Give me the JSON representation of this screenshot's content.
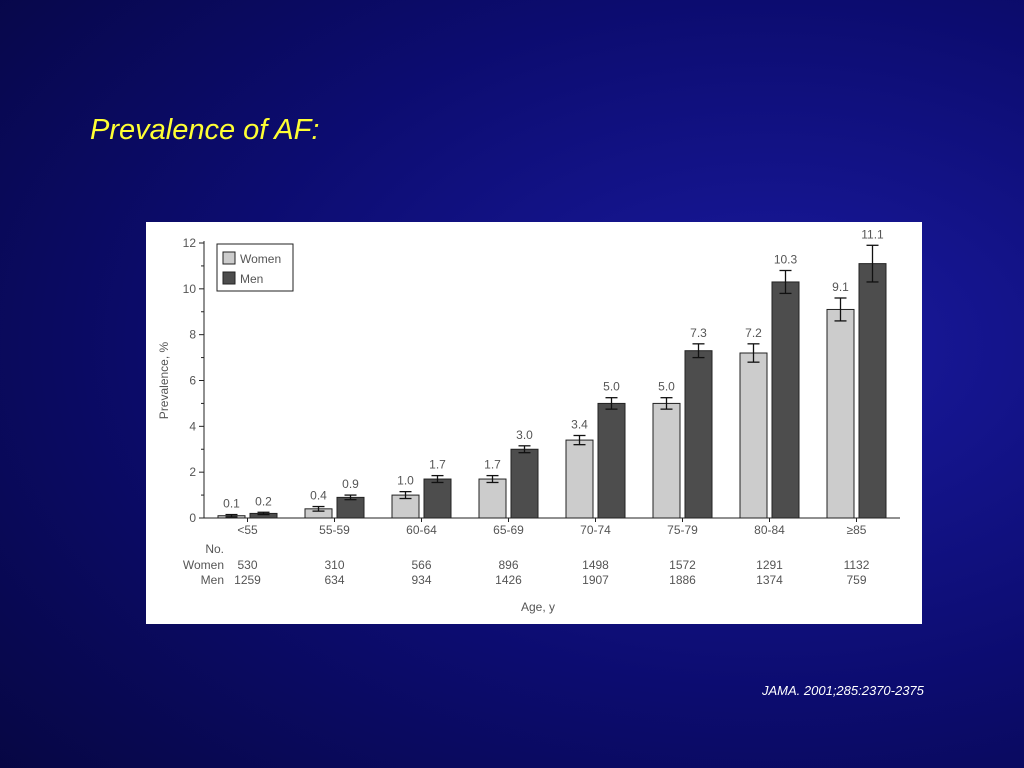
{
  "slide": {
    "title": "Prevalence of AF:",
    "citation": "JAMA. 2001;285:2370-2375"
  },
  "colors": {
    "background": "#0c0c70",
    "title": "#ffff33",
    "women_bar": "#cccccc",
    "men_bar": "#4d4d4d"
  },
  "chart_data": {
    "type": "bar",
    "categories": [
      "<55",
      "55-59",
      "60-64",
      "65-69",
      "70-74",
      "75-79",
      "80-84",
      "≥85"
    ],
    "series": [
      {
        "name": "Women",
        "color": "#cccccc",
        "values": [
          0.1,
          0.4,
          1.0,
          1.7,
          3.4,
          5.0,
          7.2,
          9.1
        ],
        "labels": [
          "0.1",
          "0.4",
          "1.0",
          "1.7",
          "3.4",
          "5.0",
          "7.2",
          "9.1"
        ],
        "error": [
          0.05,
          0.1,
          0.15,
          0.15,
          0.2,
          0.25,
          0.4,
          0.5
        ]
      },
      {
        "name": "Men",
        "color": "#4d4d4d",
        "values": [
          0.2,
          0.9,
          1.7,
          3.0,
          5.0,
          7.3,
          10.3,
          11.1
        ],
        "labels": [
          "0.2",
          "0.9",
          "1.7",
          "3.0",
          "5.0",
          "7.3",
          "10.3",
          "11.1"
        ],
        "error": [
          0.05,
          0.1,
          0.15,
          0.15,
          0.25,
          0.3,
          0.5,
          0.8
        ]
      }
    ],
    "ylabel": "Prevalence, %",
    "xlabel": "Age, y",
    "ylim": [
      0,
      12
    ],
    "yticks": [
      "0",
      "2",
      "4",
      "6",
      "8",
      "10",
      "12"
    ],
    "legend_position": "top-left",
    "counts_header": "No.",
    "counts": [
      {
        "label": "Women",
        "values": [
          "530",
          "310",
          "566",
          "896",
          "1498",
          "1572",
          "1291",
          "1132"
        ]
      },
      {
        "label": "Men",
        "values": [
          "1259",
          "634",
          "934",
          "1426",
          "1907",
          "1886",
          "1374",
          "759"
        ]
      }
    ]
  }
}
